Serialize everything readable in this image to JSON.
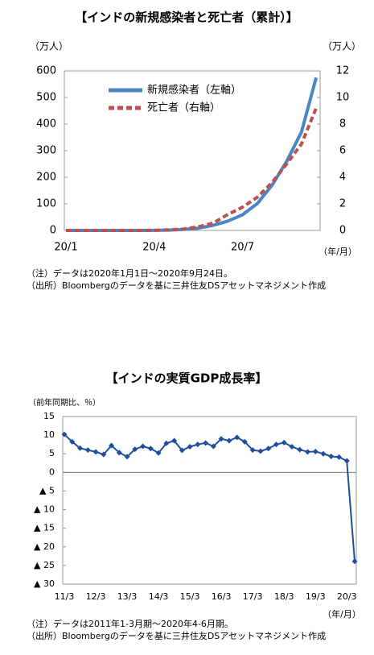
{
  "chart_data": [
    {
      "type": "line",
      "title": "【インドの新規感染者と死亡者（累計）】",
      "y_label": "（万人）",
      "y2_label": "（万人）",
      "x_label": "（年/月）",
      "categories": [
        "20/1",
        null,
        null,
        null,
        null,
        null,
        "20/4",
        null,
        null,
        null,
        null,
        null,
        "20/7",
        null,
        null,
        null,
        null,
        null
      ],
      "ylim": [
        0,
        600
      ],
      "yticks": [
        0,
        100,
        200,
        300,
        400,
        500,
        600
      ],
      "y2lim": [
        0,
        12
      ],
      "y2ticks": [
        0,
        2,
        4,
        6,
        8,
        10,
        12
      ],
      "legend": "upper left",
      "grid": false,
      "series": [
        {
          "name": "新規感染者（左軸）",
          "color": "#4a86c5",
          "dashed": false,
          "values": [
            0,
            0,
            0,
            0,
            0,
            0.01,
            0.2,
            1.3,
            3.5,
            8.6,
            19,
            35,
            59,
            101,
            170,
            260,
            370,
            575
          ]
        },
        {
          "name": "死亡者（右軸）",
          "color": "#c0504d",
          "dashed": true,
          "axis": "y2",
          "values": [
            0,
            0,
            0,
            0,
            0,
            0,
            0.005,
            0.04,
            0.11,
            0.27,
            0.55,
            1.2,
            1.75,
            2.5,
            3.6,
            5.0,
            6.5,
            9.2
          ]
        }
      ],
      "notes": [
        "（注）データは2020年1月1日～2020年9月24日。",
        "（出所）Bloombergのデータを基に三井住友DSアセットマネジメント作成"
      ]
    },
    {
      "type": "line",
      "title": "【インドの実質GDP成長率】",
      "y_label": "（前年同期比、％）",
      "x_label": "（年/月）",
      "categories": [
        "11/3",
        null,
        null,
        null,
        "12/3",
        null,
        null,
        null,
        "13/3",
        null,
        null,
        null,
        "14/3",
        null,
        null,
        null,
        "15/3",
        null,
        null,
        null,
        "16/3",
        null,
        null,
        null,
        "17/3",
        null,
        null,
        null,
        "18/3",
        null,
        null,
        null,
        "19/3",
        null,
        null,
        null,
        "20/3",
        null
      ],
      "ylim": [
        -30,
        15
      ],
      "yticks": [
        {
          "value": -30,
          "label": "▲ 30"
        },
        {
          "value": -25,
          "label": "▲ 25"
        },
        {
          "value": -20,
          "label": "▲ 20"
        },
        {
          "value": -15,
          "label": "▲ 15"
        },
        {
          "value": -10,
          "label": "▲ 10"
        },
        {
          "value": -5,
          "label": "▲ 5"
        },
        0,
        5,
        10,
        15
      ],
      "grid": false,
      "marker": "diamond",
      "series": [
        {
          "name": null,
          "color": "#1f4e9c",
          "dashed": false,
          "values": [
            10.2,
            8.2,
            6.5,
            6.0,
            5.5,
            4.8,
            7.2,
            5.3,
            4.2,
            6.2,
            7.0,
            6.4,
            5.2,
            7.8,
            8.5,
            5.9,
            6.9,
            7.5,
            7.9,
            7.0,
            9.0,
            8.5,
            9.4,
            8.2,
            6.0,
            5.7,
            6.4,
            7.5,
            8.0,
            6.9,
            6.1,
            5.5,
            5.6,
            5.0,
            4.3,
            4.1,
            3.1,
            -23.9
          ]
        }
      ],
      "notes": [
        "（注）データは2011年1-3月期～2020年4-6月期。",
        "（出所）Bloombergのデータを基に三井住友DSアセットマネジメント作成"
      ]
    }
  ]
}
